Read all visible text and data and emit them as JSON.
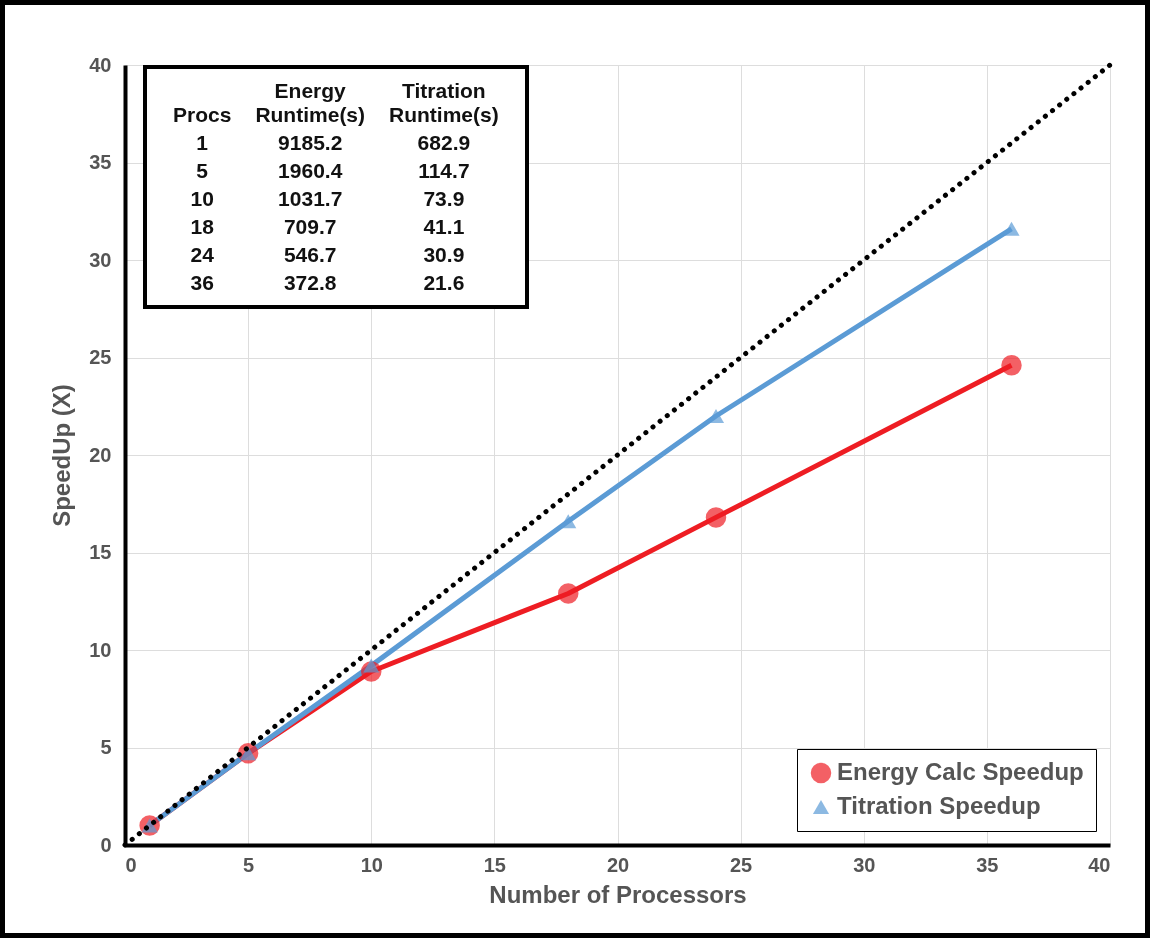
{
  "chart_data": {
    "type": "line",
    "xlabel": "Number of Processors",
    "ylabel": "SpeedUp (X)",
    "xlim": [
      0,
      40
    ],
    "xticks": [
      0,
      5,
      10,
      15,
      20,
      25,
      30,
      35,
      40
    ],
    "ylim": [
      0,
      40
    ],
    "yticks": [
      0,
      5,
      10,
      15,
      20,
      25,
      30,
      35,
      40
    ],
    "grid": true,
    "legend": "bottom right",
    "series": [
      {
        "name": "Energy Calc Speedup",
        "color": "#ee1d23",
        "marker": "circle",
        "x": [
          1,
          5,
          10,
          18,
          24,
          36
        ],
        "values": [
          1,
          4.7,
          8.9,
          12.9,
          16.8,
          24.6
        ]
      },
      {
        "name": "Titration Speedup",
        "color": "#5b9bd5",
        "marker": "triangle",
        "x": [
          1,
          5,
          10,
          18,
          24,
          36
        ],
        "values": [
          1,
          4.7,
          9.2,
          16.6,
          22.0,
          31.6
        ]
      },
      {
        "type": "line",
        "color": "#000000",
        "marker": "none",
        "line_style": "dotted",
        "x": [
          0,
          40
        ],
        "values": [
          0,
          40
        ]
      }
    ],
    "annotations": [
      "Procs",
      "Energy\nRuntime(s)",
      "Titration\nRuntime(s)",
      "1",
      "9185.2",
      "682.9",
      "5",
      "1960.4",
      "114.7",
      "10",
      "1031.7",
      "73.9",
      "18",
      "709.7",
      "41.1",
      "24",
      "546.7",
      "30.9",
      "36",
      "372.8",
      "21.6"
    ]
  }
}
